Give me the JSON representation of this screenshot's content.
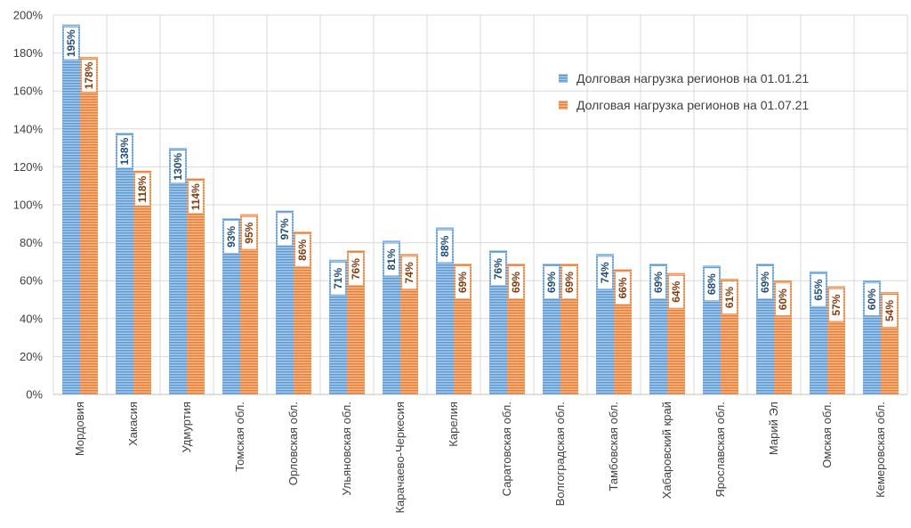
{
  "chart_data": {
    "type": "bar",
    "title": "",
    "xlabel": "",
    "ylabel": "",
    "ylim": [
      0,
      200
    ],
    "yticks": [
      "0%",
      "20%",
      "40%",
      "60%",
      "80%",
      "100%",
      "120%",
      "140%",
      "160%",
      "180%",
      "200%"
    ],
    "value_suffix": "%",
    "grid": true,
    "legend_position": "top-right",
    "categories": [
      "Мордовия",
      "Хакасия",
      "Удмуртия",
      "Томская обл.",
      "Орловская обл.",
      "Ульяновская обл.",
      "Карачаево-Черкесия",
      "Карелия",
      "Саратовская обл.",
      "Волгоградская обл.",
      "Тамбовская обл.",
      "Хабаровский край",
      "Ярославская обл.",
      "Марий Эл",
      "Омская обл.",
      "Кемеровская обл."
    ],
    "series": [
      {
        "name": "Долговая нагрузка регионов на 01.01.21",
        "color": "#5b9bd5",
        "label_color": "#1f4e79",
        "values": [
          195,
          138,
          130,
          93,
          97,
          71,
          81,
          88,
          76,
          69,
          74,
          69,
          68,
          69,
          65,
          60
        ]
      },
      {
        "name": "Долговая нагрузка регионов на 01.07.21",
        "color": "#ed7d31",
        "label_color": "#843c0c",
        "values": [
          178,
          118,
          114,
          95,
          86,
          76,
          74,
          69,
          69,
          69,
          66,
          64,
          61,
          60,
          57,
          54
        ]
      }
    ]
  }
}
